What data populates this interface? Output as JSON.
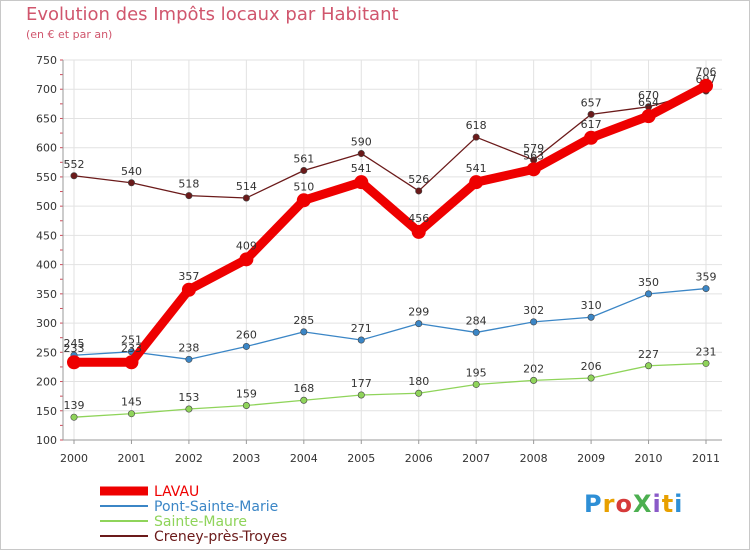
{
  "header": {
    "title": "Evolution des Impôts locaux par Habitant",
    "subtitle": "(en € et par an)"
  },
  "logo": {
    "text": "ProXiti",
    "colors": [
      "#2e8fd6",
      "#e8a000",
      "#d63a3a",
      "#4caf50",
      "#8a5ac8",
      "#e8a000",
      "#2e8fd6"
    ]
  },
  "chart_data": {
    "type": "line",
    "title": "Evolution des Impôts locaux par Habitant",
    "subtitle": "(en € et par an)",
    "xlabel": "",
    "ylabel": "",
    "x": [
      "2000",
      "2001",
      "2002",
      "2003",
      "2004",
      "2005",
      "2006",
      "2007",
      "2008",
      "2009",
      "2010",
      "2011"
    ],
    "ylim": [
      100,
      750
    ],
    "yticks": [
      100,
      150,
      200,
      250,
      300,
      350,
      400,
      450,
      500,
      550,
      600,
      650,
      700,
      750
    ],
    "grid": true,
    "legend_position": "bottom-left",
    "series": [
      {
        "name": "Creney-près-Troyes",
        "color": "#6b1a1a",
        "values": [
          552,
          540,
          518,
          514,
          561,
          590,
          526,
          618,
          579,
          657,
          670,
          697
        ],
        "labels": [
          "552",
          "540",
          "518",
          "514",
          "561",
          "590",
          "526",
          "618",
          "579",
          "657",
          "670",
          "697"
        ]
      },
      {
        "name": "Pont-Sainte-Marie",
        "color": "#3b86c6",
        "values": [
          245,
          251,
          238,
          260,
          285,
          271,
          299,
          284,
          302,
          310,
          350,
          359
        ],
        "labels": [
          "245",
          "251",
          "238",
          "260",
          "285",
          "271",
          "299",
          "284",
          "302",
          "310",
          "350",
          "359"
        ]
      },
      {
        "name": "Sainte-Maure",
        "color": "#8fd45a",
        "values": [
          139,
          145,
          153,
          159,
          168,
          177,
          180,
          195,
          202,
          206,
          227,
          231
        ],
        "labels": [
          "139",
          "145",
          "153",
          "159",
          "168",
          "177",
          "180",
          "195",
          "202",
          "206",
          "227",
          "231"
        ]
      },
      {
        "name": "LAVAU",
        "color": "#ee0000",
        "values": [
          233,
          233,
          357,
          409,
          510,
          541,
          456,
          541,
          563,
          617,
          654,
          706
        ],
        "labels": [
          "233",
          "233",
          "357",
          "409",
          "510",
          "541",
          "456",
          "541",
          "563",
          "617",
          "654",
          "706"
        ]
      }
    ],
    "legend": [
      {
        "name": "LAVAU",
        "color": "#ee0000"
      },
      {
        "name": "Pont-Sainte-Marie",
        "color": "#3b86c6"
      },
      {
        "name": "Sainte-Maure",
        "color": "#8fd45a"
      },
      {
        "name": "Creney-près-Troyes",
        "color": "#6b1a1a"
      }
    ]
  }
}
